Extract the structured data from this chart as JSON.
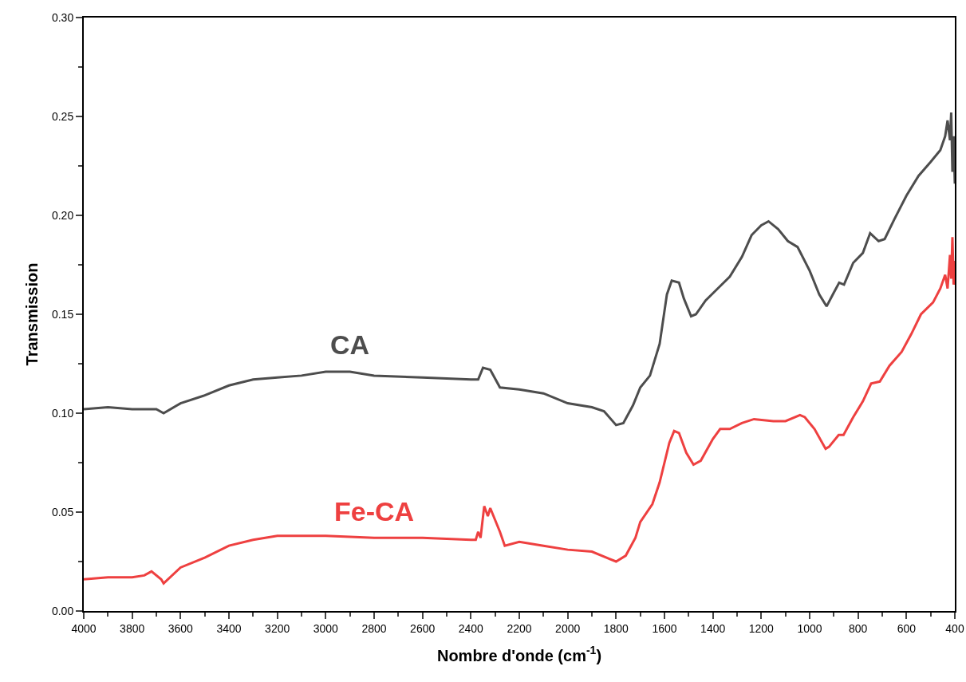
{
  "chart_data": {
    "type": "line",
    "xlabel": "Nombre d'onde (cm$^{-1}$)",
    "ylabel": "Transmission",
    "xlim": [
      4000,
      400
    ],
    "xticks": [
      4000,
      3800,
      3600,
      3400,
      3200,
      3000,
      2800,
      2600,
      2400,
      2200,
      2000,
      1800,
      1600,
      1400,
      1200,
      1000,
      800,
      600,
      400
    ],
    "ylim": [
      0,
      0.3
    ],
    "yticks": [
      {
        "value": 0,
        "label": "0.00"
      },
      {
        "value": 0.05,
        "label": "0.05"
      },
      {
        "value": 0.1,
        "label": "0.10"
      },
      {
        "value": 0.15,
        "label": "0.15"
      },
      {
        "value": 0.2,
        "label": "0.20"
      },
      {
        "value": 0.25,
        "label": "0.25"
      },
      {
        "value": 0.3,
        "label": "0.30"
      }
    ],
    "grid": false,
    "legend": false,
    "marker": "none",
    "line_style": "solid",
    "series": [
      {
        "name": "CA",
        "color": "#4d4d4d",
        "x": [
          4000,
          3900,
          3800,
          3700,
          3670,
          3600,
          3500,
          3400,
          3300,
          3200,
          3100,
          3000,
          2900,
          2800,
          2600,
          2400,
          2370,
          2350,
          2320,
          2280,
          2200,
          2100,
          2000,
          1900,
          1850,
          1800,
          1770,
          1730,
          1700,
          1660,
          1620,
          1590,
          1570,
          1540,
          1520,
          1490,
          1470,
          1430,
          1380,
          1330,
          1280,
          1240,
          1200,
          1170,
          1130,
          1090,
          1050,
          1000,
          960,
          930,
          900,
          878,
          858,
          820,
          780,
          750,
          715,
          690,
          650,
          600,
          550,
          500,
          460,
          440,
          430,
          420,
          415,
          410,
          405,
          400
        ],
        "values": [
          0.102,
          0.103,
          0.102,
          0.102,
          0.1,
          0.105,
          0.109,
          0.114,
          0.117,
          0.118,
          0.119,
          0.121,
          0.121,
          0.119,
          0.118,
          0.117,
          0.117,
          0.123,
          0.122,
          0.113,
          0.112,
          0.11,
          0.105,
          0.103,
          0.101,
          0.094,
          0.095,
          0.104,
          0.113,
          0.119,
          0.135,
          0.16,
          0.167,
          0.166,
          0.158,
          0.149,
          0.15,
          0.157,
          0.163,
          0.169,
          0.179,
          0.19,
          0.195,
          0.197,
          0.193,
          0.187,
          0.184,
          0.172,
          0.16,
          0.154,
          0.161,
          0.166,
          0.165,
          0.176,
          0.181,
          0.191,
          0.187,
          0.188,
          0.198,
          0.21,
          0.22,
          0.227,
          0.233,
          0.24,
          0.248,
          0.238,
          0.252,
          0.222,
          0.24,
          0.216
        ]
      },
      {
        "name": "Fe-CA",
        "color": "#ee4040",
        "x": [
          4000,
          3900,
          3800,
          3750,
          3720,
          3680,
          3670,
          3600,
          3500,
          3400,
          3300,
          3200,
          3000,
          2800,
          2600,
          2400,
          2380,
          2370,
          2360,
          2345,
          2330,
          2320,
          2280,
          2260,
          2200,
          2100,
          2000,
          1900,
          1800,
          1760,
          1720,
          1700,
          1650,
          1620,
          1580,
          1560,
          1540,
          1510,
          1480,
          1450,
          1400,
          1370,
          1330,
          1280,
          1230,
          1150,
          1100,
          1040,
          1020,
          980,
          934,
          920,
          880,
          860,
          820,
          780,
          746,
          710,
          670,
          620,
          580,
          540,
          490,
          460,
          440,
          430,
          420,
          415,
          410,
          405,
          400
        ],
        "values": [
          0.016,
          0.017,
          0.017,
          0.018,
          0.02,
          0.016,
          0.014,
          0.022,
          0.027,
          0.033,
          0.036,
          0.038,
          0.038,
          0.037,
          0.037,
          0.036,
          0.036,
          0.04,
          0.037,
          0.053,
          0.048,
          0.052,
          0.04,
          0.033,
          0.035,
          0.033,
          0.031,
          0.03,
          0.025,
          0.028,
          0.037,
          0.045,
          0.054,
          0.065,
          0.085,
          0.091,
          0.09,
          0.08,
          0.074,
          0.076,
          0.087,
          0.092,
          0.092,
          0.095,
          0.097,
          0.096,
          0.096,
          0.099,
          0.098,
          0.092,
          0.082,
          0.083,
          0.089,
          0.089,
          0.098,
          0.106,
          0.115,
          0.116,
          0.124,
          0.131,
          0.14,
          0.15,
          0.156,
          0.163,
          0.17,
          0.163,
          0.18,
          0.168,
          0.189,
          0.165,
          0.177
        ]
      }
    ]
  }
}
